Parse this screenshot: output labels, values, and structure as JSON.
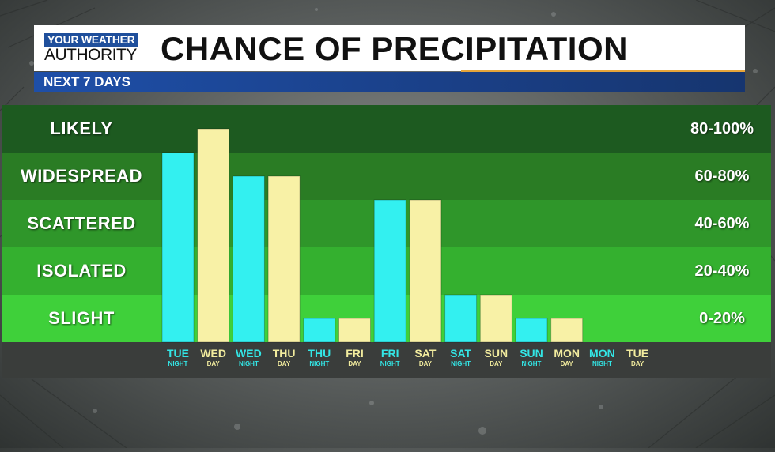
{
  "header": {
    "logo_top": "YOUR WEATHER",
    "logo_bottom": "AUTHORITY",
    "title": "CHANCE OF PRECIPITATION",
    "subtitle": "NEXT 7 DAYS"
  },
  "colors": {
    "night_bar": "#33f0f0",
    "day_bar": "#f8f1a6",
    "bands": [
      "#1d5a20",
      "#2a7c24",
      "#2f962a",
      "#34b02f",
      "#3fd03a"
    ],
    "axis_strip": "#3a3d3b"
  },
  "chart_data": {
    "type": "bar",
    "title": "CHANCE OF PRECIPITATION",
    "subtitle": "NEXT 7 DAYS",
    "ylim": [
      0,
      100
    ],
    "grid": false,
    "categories": [
      {
        "day": "TUE",
        "part": "NIGHT"
      },
      {
        "day": "WED",
        "part": "DAY"
      },
      {
        "day": "WED",
        "part": "NIGHT"
      },
      {
        "day": "THU",
        "part": "DAY"
      },
      {
        "day": "THU",
        "part": "NIGHT"
      },
      {
        "day": "FRI",
        "part": "DAY"
      },
      {
        "day": "FRI",
        "part": "NIGHT"
      },
      {
        "day": "SAT",
        "part": "DAY"
      },
      {
        "day": "SAT",
        "part": "NIGHT"
      },
      {
        "day": "SUN",
        "part": "DAY"
      },
      {
        "day": "SUN",
        "part": "NIGHT"
      },
      {
        "day": "MON",
        "part": "DAY"
      },
      {
        "day": "MON",
        "part": "NIGHT"
      },
      {
        "day": "TUE",
        "part": "DAY"
      }
    ],
    "values": [
      80,
      90,
      70,
      70,
      10,
      10,
      60,
      60,
      20,
      20,
      10,
      10,
      0,
      0
    ],
    "bands": [
      {
        "label": "LIKELY",
        "range": "80-100%",
        "min": 80,
        "max": 100
      },
      {
        "label": "WIDESPREAD",
        "range": "60-80%",
        "min": 60,
        "max": 80
      },
      {
        "label": "SCATTERED",
        "range": "40-60%",
        "min": 40,
        "max": 60
      },
      {
        "label": "ISOLATED",
        "range": "20-40%",
        "min": 20,
        "max": 40
      },
      {
        "label": "SLIGHT",
        "range": "0-20%",
        "min": 0,
        "max": 20
      }
    ]
  }
}
